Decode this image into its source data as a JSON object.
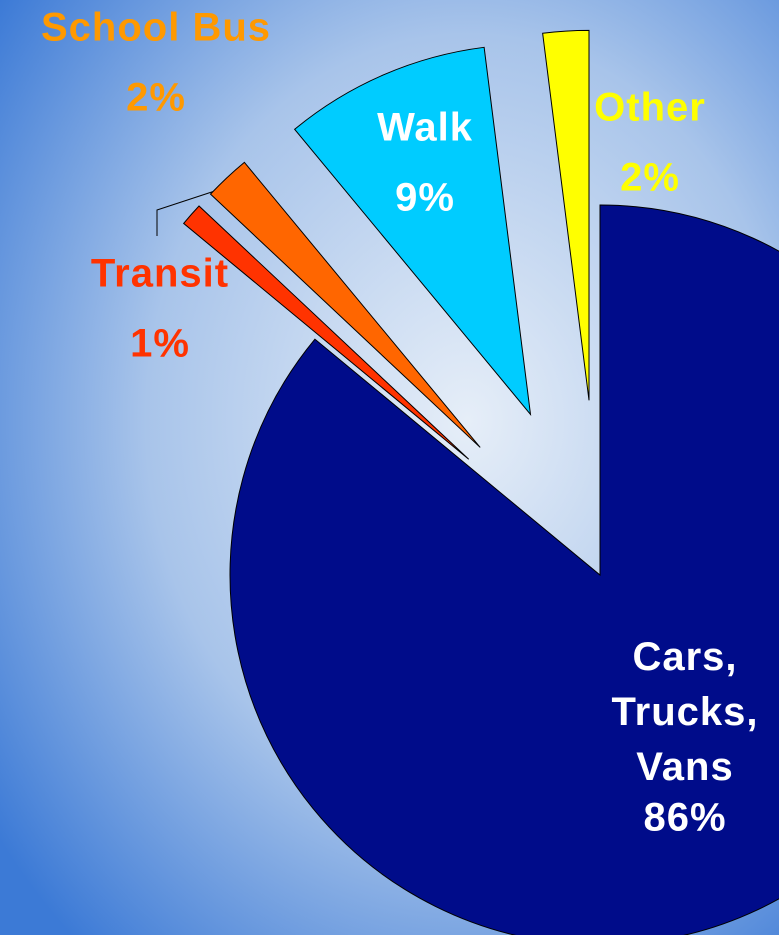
{
  "chart_data": {
    "type": "pie",
    "categories": [
      "Cars, Trucks, Vans",
      "Transit",
      "School Bus",
      "Walk",
      "Other"
    ],
    "values": [
      86,
      1,
      2,
      9,
      2
    ],
    "value_labels": [
      "86%",
      "1%",
      "2%",
      "9%",
      "2%"
    ],
    "colors": [
      "#000c8a",
      "#ff3300",
      "#ff6600",
      "#00ccff",
      "#ffff00"
    ]
  }
}
